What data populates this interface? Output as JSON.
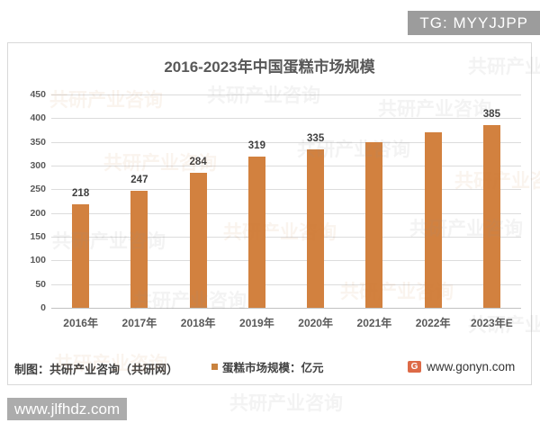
{
  "badge": {
    "text": "TG: MYYJJPP"
  },
  "overlay_watermark": {
    "text": "www.jlfhdz.com"
  },
  "background_watermark": {
    "text": "共研产业咨询"
  },
  "chart_data": {
    "type": "bar",
    "title": "2016-2023年中国蛋糕市场规模",
    "categories": [
      "2016年",
      "2017年",
      "2018年",
      "2019年",
      "2020年",
      "2021年",
      "2022年",
      "2023年E"
    ],
    "values": [
      218,
      247,
      284,
      319,
      335,
      350,
      371,
      385
    ],
    "data_labels": [
      "218",
      "247",
      "284",
      "319",
      "335",
      "",
      "",
      "385"
    ],
    "xlabel": "",
    "ylabel": "",
    "ylim": [
      0,
      450
    ],
    "ytick_step": 50,
    "grid": true,
    "legend": [
      "蛋糕市场规模：亿元"
    ],
    "legend_position": "bottom",
    "bar_color": "#d2813f"
  },
  "footer": {
    "credit": "制图：共研产业咨询（共研网）",
    "legend_label": "蛋糕市场规模：亿元",
    "logo_letter": "G",
    "website": "www.gonyn.com"
  },
  "colors": {
    "bar": "#d2813f",
    "legend_marker": "#c9823e",
    "badge_bg": "#9c9c9c",
    "watermark_bg": "#acacac",
    "title_text": "#595959",
    "gridline": "#dcdcdc"
  }
}
